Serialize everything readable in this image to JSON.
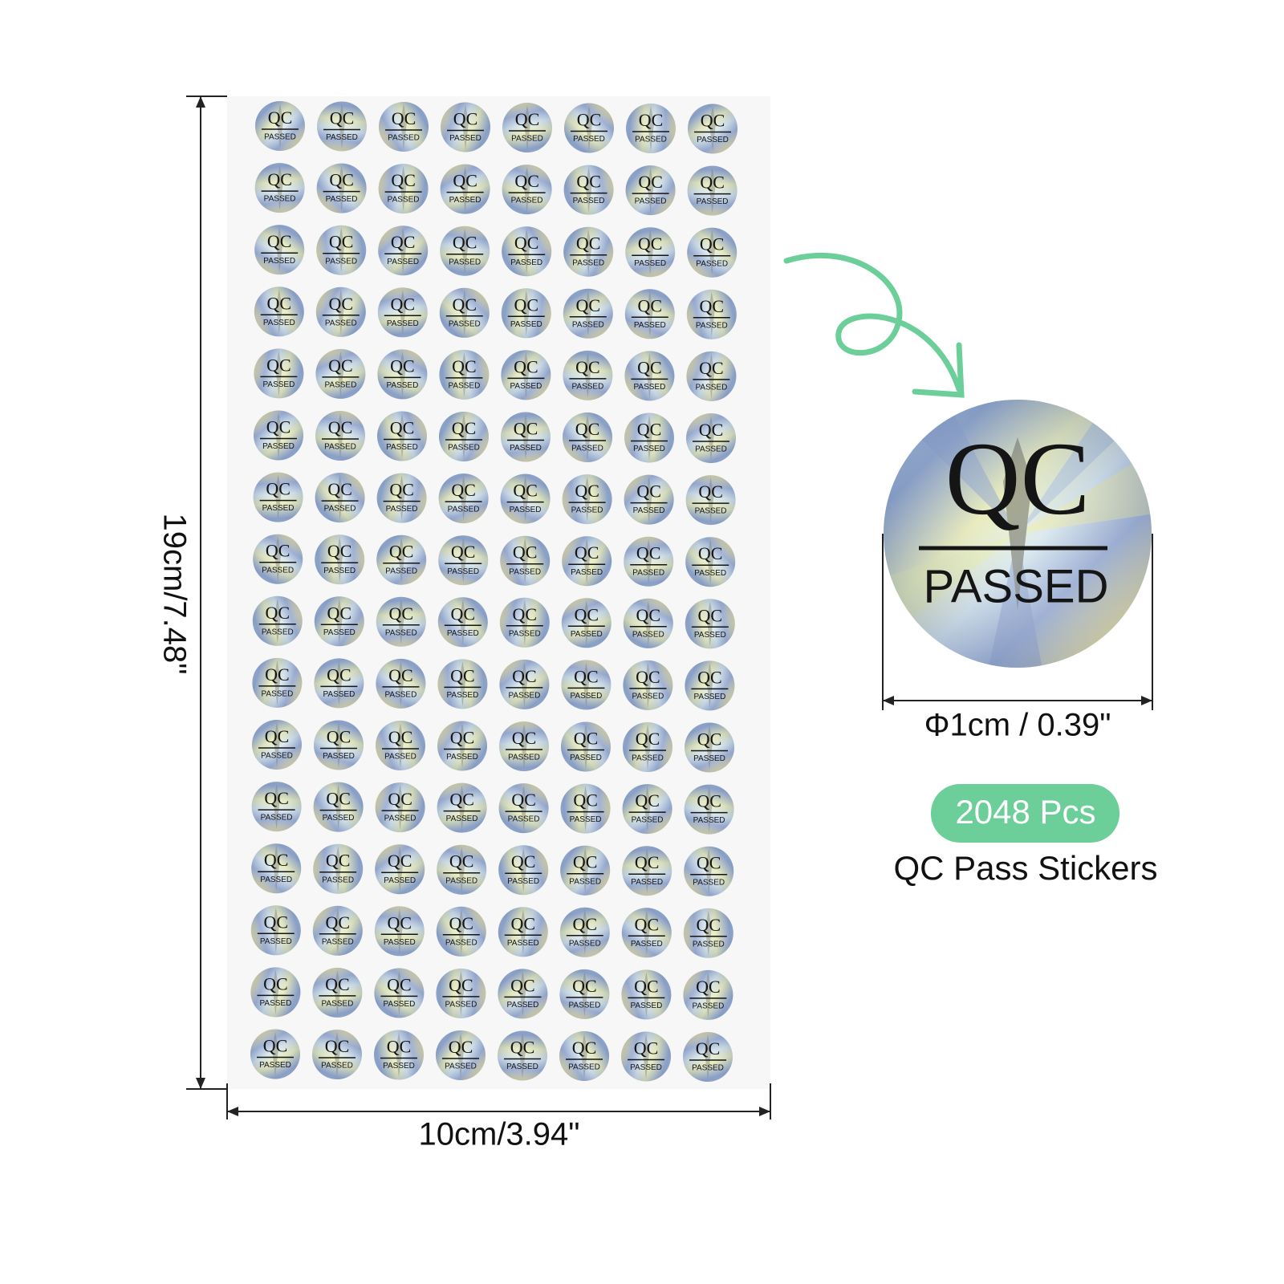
{
  "sheet": {
    "height_label": "19cm/7.48\"",
    "width_label": "10cm/3.94\"",
    "sticker_text": {
      "top": "QC",
      "bottom": "PASSED"
    }
  },
  "detail": {
    "diameter_label": "Φ1cm / 0.39\"",
    "count_badge": "2048 Pcs",
    "product_name": "QC Pass Stickers"
  }
}
